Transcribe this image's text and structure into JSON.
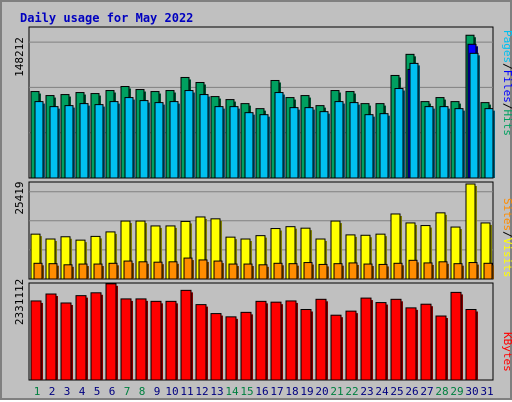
{
  "colors": {
    "pages": "#00c0f0",
    "pages_shadow": "#005c78",
    "hits": "#00a060",
    "hits_shadow": "#004f2f",
    "visits": "#ffff00",
    "visits_shadow": "#7f7f00",
    "sites": "#ff8c00",
    "sites_shadow": "#7f4600",
    "kbytes": "#ff0000",
    "kbytes_shadow": "#800000",
    "title": "#0000c0",
    "weekend": "#008040",
    "weekday": "#000080"
  },
  "chart_data": [
    {
      "type": "bar",
      "title": "Daily usage for May 2022",
      "categories": [
        "1",
        "2",
        "3",
        "4",
        "5",
        "6",
        "7",
        "8",
        "9",
        "10",
        "11",
        "12",
        "13",
        "14",
        "15",
        "16",
        "17",
        "18",
        "19",
        "20",
        "21",
        "22",
        "23",
        "24",
        "25",
        "26",
        "27",
        "28",
        "29",
        "30",
        "31"
      ],
      "weekend_days": [
        "1",
        "7",
        "8",
        "14",
        "15",
        "21",
        "22",
        "28",
        "29"
      ],
      "ylim": [
        0,
        148212
      ],
      "ytick_label": "148212",
      "legend": [
        "Pages",
        "Files",
        "Hits"
      ],
      "legend_separators": [
        "/",
        "/"
      ],
      "series": [
        {
          "name": "Hits",
          "values": [
            86000,
            82000,
            83000,
            85000,
            84000,
            87000,
            91000,
            88000,
            86000,
            87000,
            100000,
            95000,
            81000,
            78000,
            74000,
            69000,
            97000,
            80000,
            82000,
            72000,
            87000,
            86000,
            74000,
            74000,
            102000,
            123000,
            76000,
            80000,
            76000,
            142000,
            75000
          ]
        },
        {
          "name": "Files",
          "values": [
            0,
            0,
            0,
            0,
            0,
            0,
            0,
            0,
            0,
            0,
            0,
            0,
            0,
            0,
            0,
            0,
            0,
            0,
            0,
            0,
            0,
            0,
            0,
            0,
            0,
            108000,
            0,
            0,
            0,
            133000,
            0
          ]
        },
        {
          "name": "Pages",
          "values": [
            76000,
            71000,
            72000,
            74000,
            73000,
            76000,
            80000,
            77000,
            75000,
            76000,
            87000,
            83000,
            71000,
            71000,
            65000,
            63000,
            85000,
            70000,
            70000,
            66000,
            76000,
            75000,
            63000,
            64000,
            89000,
            114000,
            71000,
            71000,
            69000,
            124000,
            69000
          ]
        }
      ]
    },
    {
      "type": "bar",
      "categories": [
        "1",
        "2",
        "3",
        "4",
        "5",
        "6",
        "7",
        "8",
        "9",
        "10",
        "11",
        "12",
        "13",
        "14",
        "15",
        "16",
        "17",
        "18",
        "19",
        "20",
        "21",
        "22",
        "23",
        "24",
        "25",
        "26",
        "27",
        "28",
        "29",
        "30",
        "31"
      ],
      "ylim": [
        0,
        25419
      ],
      "ytick_label": "25419",
      "legend": [
        "Sites",
        "Visits"
      ],
      "legend_separators": [
        "/"
      ],
      "series": [
        {
          "name": "Visits",
          "values": [
            12000,
            10700,
            11300,
            10400,
            11400,
            12600,
            15500,
            15500,
            14200,
            14200,
            15400,
            16600,
            16100,
            11200,
            10700,
            11600,
            13500,
            14000,
            13600,
            10700,
            15500,
            11800,
            11700,
            12000,
            17400,
            15000,
            14300,
            17700,
            13900,
            25419,
            15000
          ]
        },
        {
          "name": "Sites",
          "values": [
            4200,
            4100,
            3800,
            4000,
            4000,
            4200,
            4800,
            4600,
            4500,
            4600,
            5600,
            5100,
            4800,
            4000,
            4000,
            3800,
            4200,
            4100,
            4400,
            3900,
            4100,
            4300,
            4000,
            3900,
            4200,
            5000,
            4300,
            4600,
            4100,
            4400,
            4200
          ]
        }
      ]
    },
    {
      "type": "bar",
      "categories": [
        "1",
        "2",
        "3",
        "4",
        "5",
        "6",
        "7",
        "8",
        "9",
        "10",
        "11",
        "12",
        "13",
        "14",
        "15",
        "16",
        "17",
        "18",
        "19",
        "20",
        "21",
        "22",
        "23",
        "24",
        "25",
        "26",
        "27",
        "28",
        "29",
        "30",
        "31"
      ],
      "ylim": [
        0,
        2331112
      ],
      "ytick_label": "2331112",
      "legend": [
        "KBytes"
      ],
      "series": [
        {
          "name": "KBytes",
          "values": [
            1940000,
            2110000,
            1890000,
            2070000,
            2140000,
            2360000,
            1990000,
            1990000,
            1930000,
            1930000,
            2200000,
            1850000,
            1630000,
            1550000,
            1660000,
            1930000,
            1910000,
            1940000,
            1730000,
            1980000,
            1590000,
            1690000,
            2010000,
            1900000,
            1980000,
            1770000,
            1860000,
            1570000,
            2150000,
            1730000,
            0
          ]
        }
      ]
    }
  ]
}
